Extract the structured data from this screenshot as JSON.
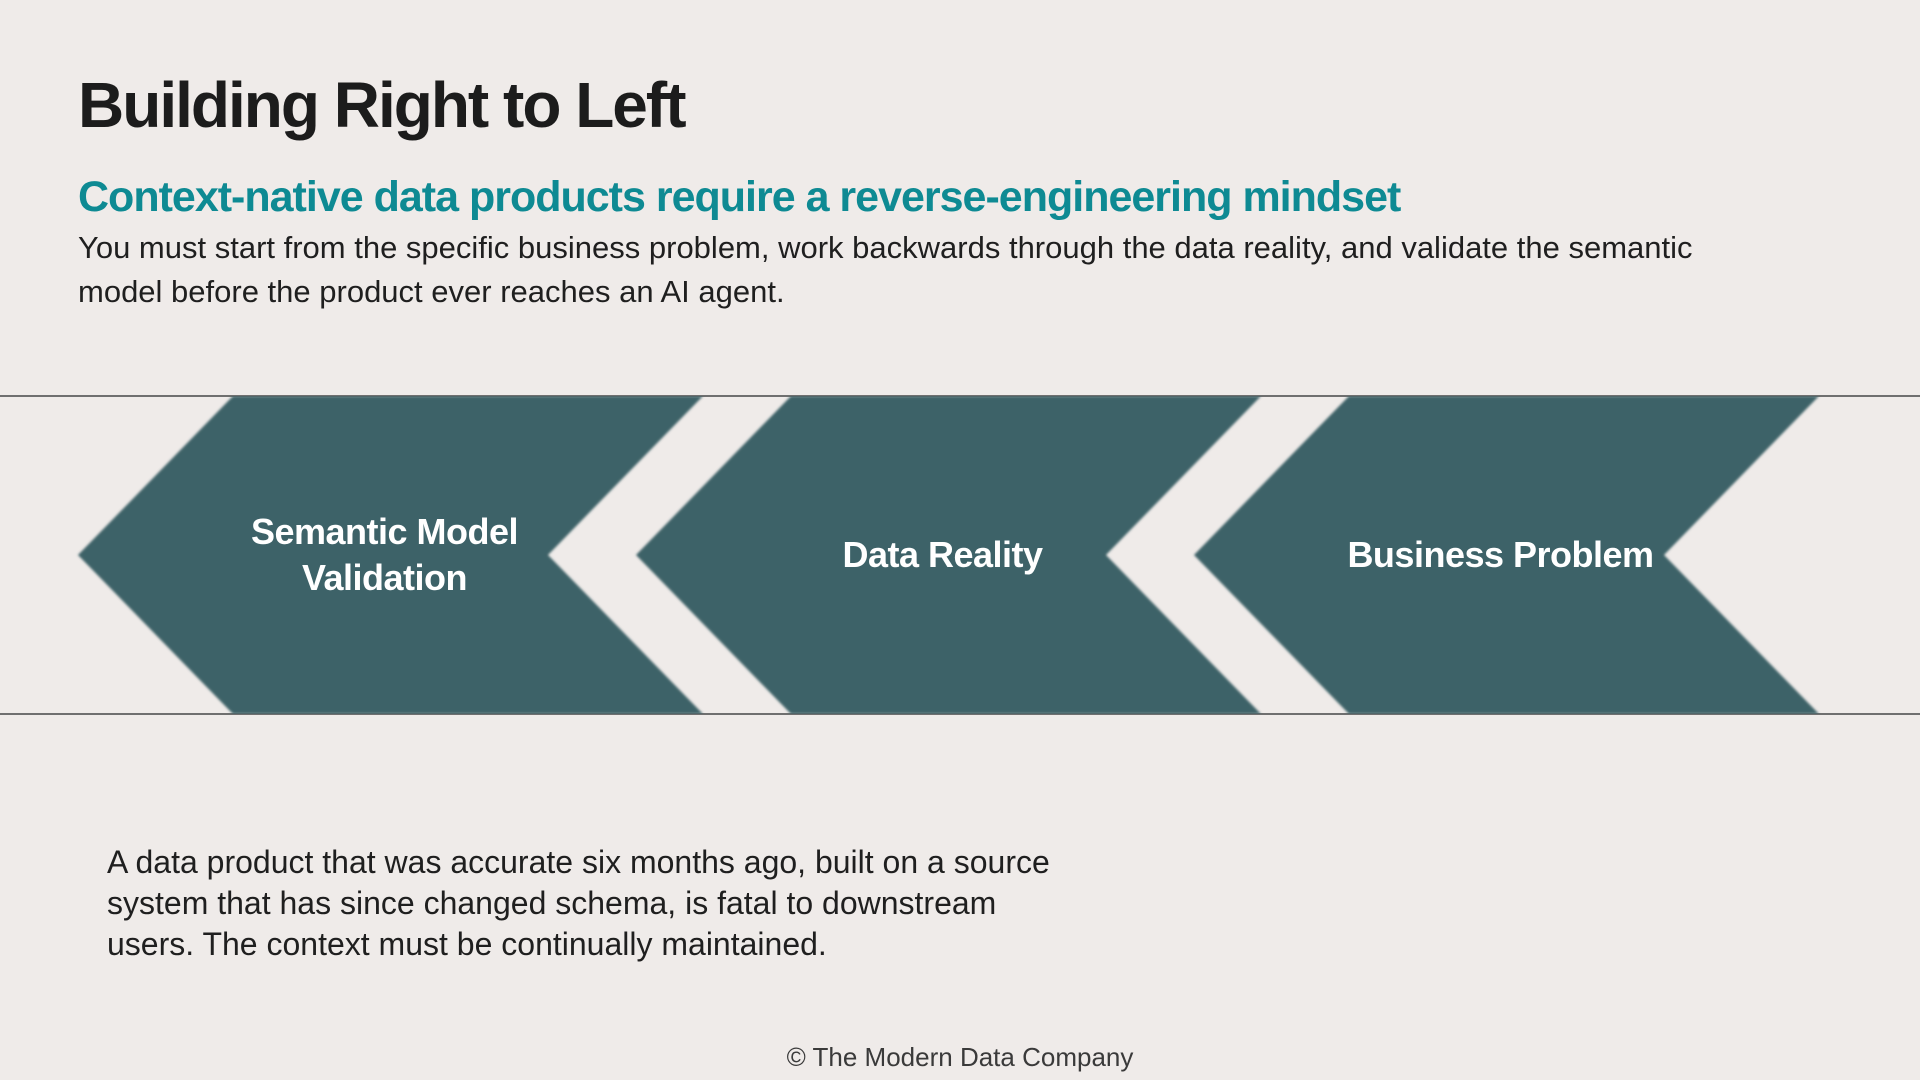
{
  "slide": {
    "title": "Building Right to Left",
    "subtitle": "Context-native data products require a reverse-engineering mindset",
    "intro": "You must start from the specific business problem, work backwards through the data reality, and validate the semantic model before the product ever reaches an AI agent.",
    "note": "A data product that was accurate six months ago, built on a source system that has since changed schema, is fatal to downstream users. The context must be continually maintained.",
    "footer": "© The Modern Data Company"
  },
  "diagram": {
    "direction": "right-to-left",
    "fill_color": "#3e6268",
    "label_color": "#ffffff",
    "steps": [
      {
        "lines": [
          "Semantic Model",
          "Validation"
        ]
      },
      {
        "lines": [
          "Data Reality"
        ]
      },
      {
        "lines": [
          "Business Problem"
        ]
      }
    ]
  }
}
